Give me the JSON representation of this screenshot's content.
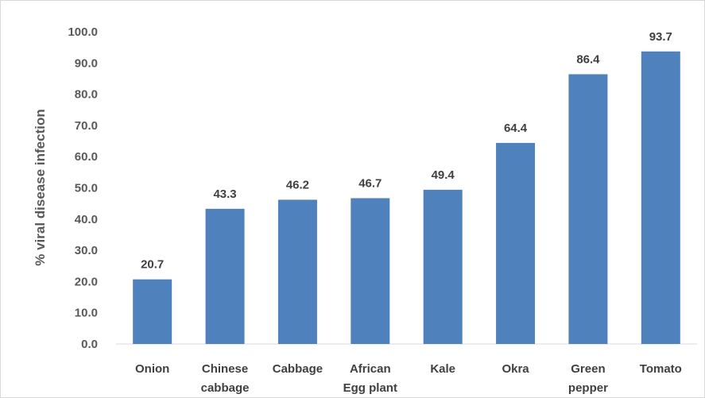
{
  "chart_data": {
    "type": "bar",
    "categories": [
      [
        "Onion"
      ],
      [
        "Chinese",
        "cabbage"
      ],
      [
        "Cabbage"
      ],
      [
        "African",
        "Egg plant"
      ],
      [
        "Kale"
      ],
      [
        "Okra"
      ],
      [
        "Green",
        "pepper"
      ],
      [
        "Tomato"
      ]
    ],
    "values": [
      20.7,
      43.3,
      46.2,
      46.7,
      49.4,
      64.4,
      86.4,
      93.7
    ],
    "data_labels": [
      "20.7",
      "43.3",
      "46.2",
      "46.7",
      "49.4",
      "64.4",
      "86.4",
      "93.7"
    ],
    "ylabel": "% viral disease infection",
    "xlabel": "",
    "title": "",
    "ylim": [
      0,
      100
    ],
    "yticks": [
      "0.0",
      "10.0",
      "20.0",
      "30.0",
      "40.0",
      "50.0",
      "60.0",
      "70.0",
      "80.0",
      "90.0",
      "100.0"
    ],
    "grid": false,
    "legend": "none",
    "bar_color": "#4f81bd",
    "axis_color": "#d9d9d9"
  }
}
